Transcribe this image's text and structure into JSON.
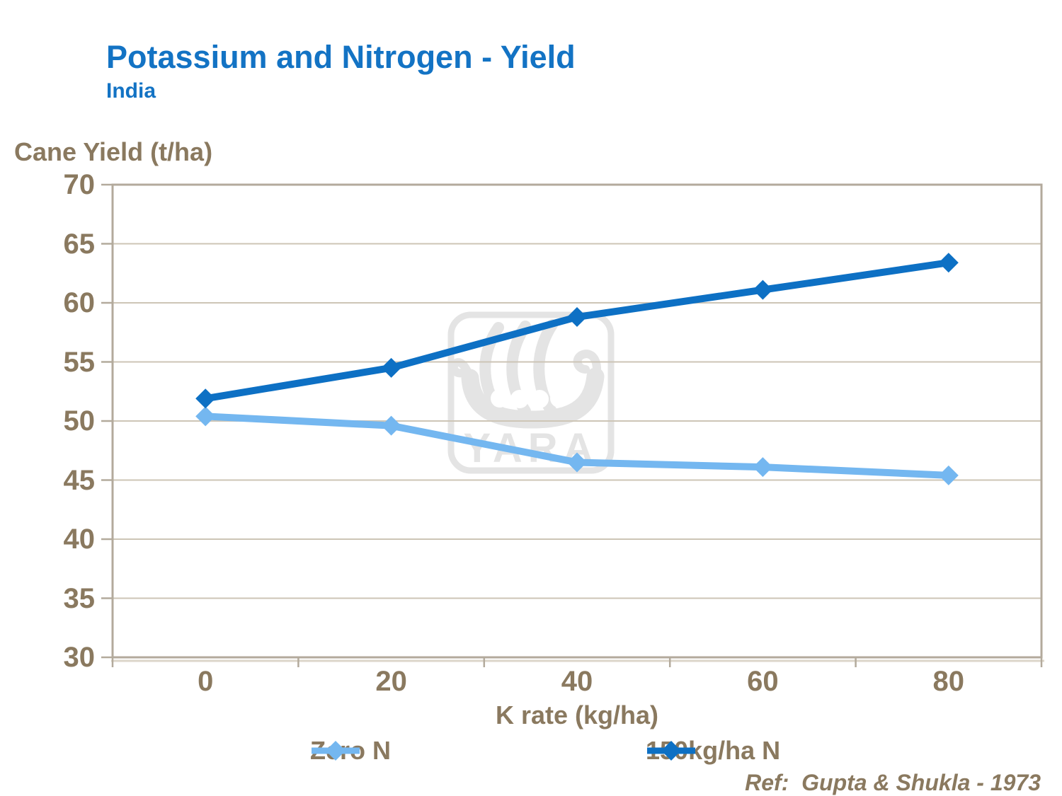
{
  "header": {
    "title": "Potassium and Nitrogen - Yield",
    "subtitle": "India"
  },
  "footer": {
    "reference": "Ref:  Gupta & Shukla - 1973"
  },
  "watermark": {
    "name": "Yara logo",
    "text": "YARA"
  },
  "colors": {
    "title_blue": "#1373c4",
    "axis_text_brown": "#8a795f",
    "plot_border": "#b3aa9c",
    "gridline": "#cdc5b6",
    "border_shadow": "#dcd6ca",
    "watermark_gray": "#e4e4e4",
    "series_zero_n": "#74b7f0",
    "series_150kg_n": "#0d70c4"
  },
  "chart_data": {
    "type": "line",
    "title": "Potassium and Nitrogen - Yield",
    "subtitle": "India",
    "categories": [
      0,
      20,
      40,
      60,
      80
    ],
    "xlabel": "K rate (kg/ha)",
    "ylabel": "Cane Yield (t/ha)",
    "ylim": [
      30,
      70
    ],
    "ytick_step": 5,
    "yticks": [
      70,
      65,
      60,
      55,
      50,
      45,
      40,
      35,
      30
    ],
    "grid": "horizontal",
    "legend_position": "bottom",
    "series": [
      {
        "name": "Zero N",
        "color": "#74b7f0",
        "marker": "diamond",
        "values": [
          50.4,
          49.6,
          46.5,
          46.1,
          45.4
        ]
      },
      {
        "name": "150kg/ha N",
        "color": "#0d70c4",
        "marker": "diamond",
        "values": [
          51.9,
          54.5,
          58.8,
          61.1,
          63.4
        ]
      }
    ]
  }
}
